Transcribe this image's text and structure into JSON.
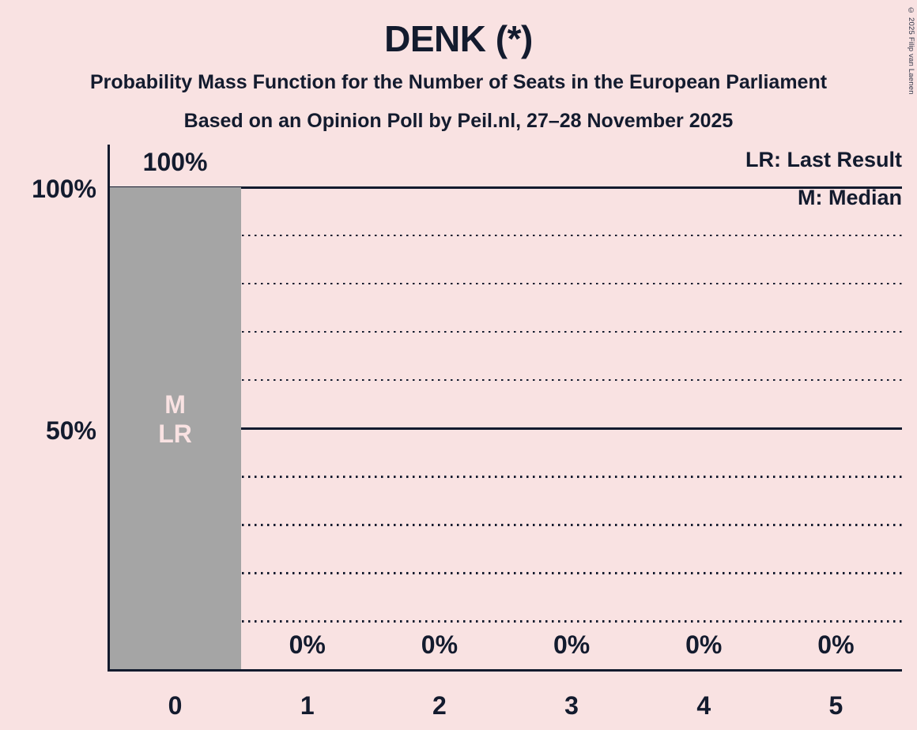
{
  "title": "DENK (*)",
  "subtitle_line1": "Probability Mass Function for the Number of Seats in the European Parliament",
  "subtitle_line2": "Based on an Opinion Poll by Peil.nl, 27–28 November 2025",
  "copyright": "© 2025 Filip van Laenen",
  "legend": {
    "lr": "LR: Last Result",
    "m": "M: Median"
  },
  "colors": {
    "background": "#f9e2e2",
    "text": "#131b2e",
    "bar": "#a5a5a5",
    "bar_annotation": "#f9e2e2"
  },
  "chart_data": {
    "type": "bar",
    "title": "DENK (*)",
    "xlabel": "",
    "ylabel": "",
    "categories": [
      "0",
      "1",
      "2",
      "3",
      "4",
      "5"
    ],
    "values": [
      100,
      0,
      0,
      0,
      0,
      0
    ],
    "value_labels": [
      "100%",
      "0%",
      "0%",
      "0%",
      "0%",
      "0%"
    ],
    "ylim": [
      0,
      100
    ],
    "legend_position": "top-right",
    "grid": "horizontal",
    "y_ticks": [
      {
        "pct": 100,
        "label": "100%"
      },
      {
        "pct": 50,
        "label": "50%"
      }
    ],
    "gridlines": [
      {
        "pct": 100,
        "style": "solid"
      },
      {
        "pct": 90,
        "style": "dotted"
      },
      {
        "pct": 80,
        "style": "dotted"
      },
      {
        "pct": 70,
        "style": "dotted"
      },
      {
        "pct": 60,
        "style": "dotted"
      },
      {
        "pct": 50,
        "style": "solid"
      },
      {
        "pct": 40,
        "style": "dotted"
      },
      {
        "pct": 30,
        "style": "dotted"
      },
      {
        "pct": 20,
        "style": "dotted"
      },
      {
        "pct": 10,
        "style": "dotted"
      }
    ],
    "annotations": {
      "0": [
        "M",
        "LR"
      ]
    }
  }
}
